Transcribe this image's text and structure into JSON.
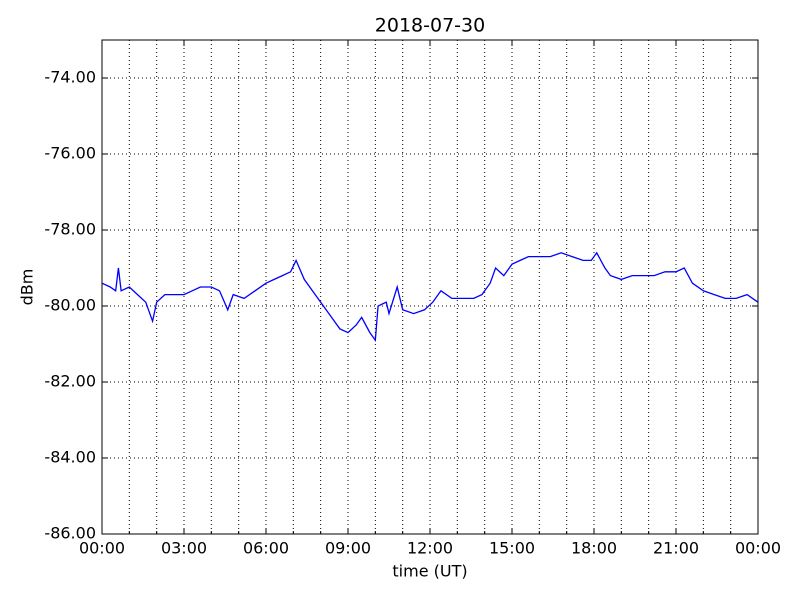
{
  "chart_data": {
    "type": "line",
    "title": "2018-07-30",
    "x_label": "time (UT)",
    "y_label": "dBm",
    "xlim": [
      0,
      24
    ],
    "ylim": [
      -86,
      -73
    ],
    "grid": true,
    "xticks": [
      {
        "value": 0,
        "label": "00:00"
      },
      {
        "value": 3,
        "label": "03:00"
      },
      {
        "value": 6,
        "label": "06:00"
      },
      {
        "value": 9,
        "label": "09:00"
      },
      {
        "value": 12,
        "label": "12:00"
      },
      {
        "value": 15,
        "label": "15:00"
      },
      {
        "value": 18,
        "label": "18:00"
      },
      {
        "value": 21,
        "label": "21:00"
      },
      {
        "value": 24,
        "label": "00:00"
      }
    ],
    "x_minor_ticks": [
      1,
      2,
      4,
      5,
      7,
      8,
      10,
      11,
      13,
      14,
      16,
      17,
      19,
      20,
      22,
      23
    ],
    "yticks": [
      {
        "value": -86,
        "label": "-86.00"
      },
      {
        "value": -84,
        "label": "-84.00"
      },
      {
        "value": -82,
        "label": "-82.00"
      },
      {
        "value": -80,
        "label": "-80.00"
      },
      {
        "value": -78,
        "label": "-78.00"
      },
      {
        "value": -76,
        "label": "-76.00"
      },
      {
        "value": -74,
        "label": "-74.00"
      }
    ],
    "x": [
      0,
      0.3,
      0.5,
      0.6,
      0.7,
      1.0,
      1.3,
      1.6,
      1.85,
      2.0,
      2.3,
      2.6,
      3.0,
      3.3,
      3.6,
      4.0,
      4.3,
      4.6,
      4.8,
      5.2,
      5.6,
      6.0,
      6.3,
      6.6,
      6.9,
      7.1,
      7.4,
      7.8,
      8.1,
      8.4,
      8.7,
      9.0,
      9.3,
      9.5,
      9.8,
      10.0,
      10.1,
      10.4,
      10.5,
      10.8,
      11.0,
      11.4,
      11.8,
      12.1,
      12.4,
      12.8,
      13.2,
      13.6,
      13.9,
      14.2,
      14.4,
      14.7,
      15.0,
      15.3,
      15.6,
      16.0,
      16.4,
      16.8,
      17.2,
      17.6,
      17.9,
      18.1,
      18.4,
      18.6,
      19.0,
      19.4,
      19.8,
      20.2,
      20.6,
      21.0,
      21.3,
      21.6,
      22.0,
      22.4,
      22.8,
      23.2,
      23.6,
      24.0
    ],
    "series": [
      {
        "color": "#0000ff",
        "values": [
          -79.4,
          -79.5,
          -79.6,
          -79.0,
          -79.6,
          -79.5,
          -79.7,
          -79.9,
          -80.4,
          -79.9,
          -79.7,
          -79.7,
          -79.7,
          -79.6,
          -79.5,
          -79.5,
          -79.6,
          -80.1,
          -79.7,
          -79.8,
          -79.6,
          -79.4,
          -79.3,
          -79.2,
          -79.1,
          -78.8,
          -79.3,
          -79.7,
          -80.0,
          -80.3,
          -80.6,
          -80.7,
          -80.5,
          -80.3,
          -80.7,
          -80.9,
          -80.0,
          -79.9,
          -80.2,
          -79.5,
          -80.1,
          -80.2,
          -80.1,
          -79.9,
          -79.6,
          -79.8,
          -79.8,
          -79.8,
          -79.7,
          -79.4,
          -79.0,
          -79.2,
          -78.9,
          -78.8,
          -78.7,
          -78.7,
          -78.7,
          -78.6,
          -78.7,
          -78.8,
          -78.8,
          -78.6,
          -79.0,
          -79.2,
          -79.3,
          -79.2,
          -79.2,
          -79.2,
          -79.1,
          -79.1,
          -79.0,
          -79.4,
          -79.6,
          -79.7,
          -79.8,
          -79.8,
          -79.7,
          -79.9
        ]
      }
    ]
  }
}
